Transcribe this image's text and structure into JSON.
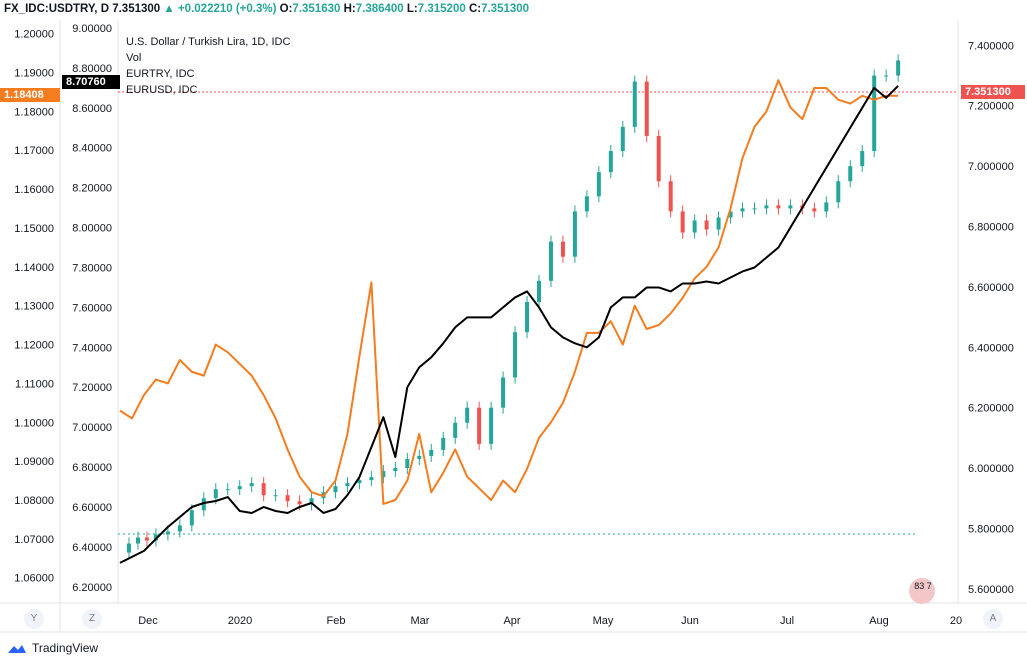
{
  "header": {
    "symbol": "FX_IDC:USDTRY, D",
    "last": "7.351300",
    "change": "+0.022210 (+0.3%)",
    "open_label": "O:",
    "open": "7.351630",
    "high_label": "H:",
    "high": "7.386400",
    "low_label": "L:",
    "low": "7.315200",
    "close_label": "C:",
    "close": "7.351300"
  },
  "legend": {
    "title": "U.S. Dollar / Turkish Lira, 1D, IDC",
    "vol": "Vol",
    "eurtry": "EURTRY, IDC",
    "eurusd": "EURUSD, IDC"
  },
  "badges": {
    "eurusd_last": "1.18408",
    "eurtry_last": "8.70760",
    "usdtry_last": "7.351300"
  },
  "scale_buttons": {
    "left1": "Y",
    "left2": "Z",
    "right": "A"
  },
  "footer": {
    "brand": "TradingView",
    "partial_label": "83 7"
  },
  "colors": {
    "usdtry_up": "#26a69a",
    "usdtry_down": "#ef5350",
    "eurusd": "#f57c1f",
    "eurtry": "#000000",
    "eurusd_badge": "#f57c1f",
    "usdtry_badge": "#ef5350",
    "eurtry_badge": "#000000"
  },
  "chart_data": {
    "type": "line",
    "title": "U.S. Dollar / Turkish Lira, 1D, IDC",
    "x_labels": [
      "Dec",
      "2020",
      "Feb",
      "Mar",
      "Apr",
      "May",
      "Jun",
      "Jul",
      "Aug",
      "20"
    ],
    "axes": {
      "eurusd": {
        "side": "left-outer",
        "ticks": [
          "1.20000",
          "1.19000",
          "1.18000",
          "1.17000",
          "1.16000",
          "1.15000",
          "1.14000",
          "1.13000",
          "1.12000",
          "1.11000",
          "1.10000",
          "1.09000",
          "1.08000",
          "1.07000",
          "1.06000"
        ],
        "range": [
          1.0535,
          1.2035
        ]
      },
      "eurtry": {
        "side": "left-inner",
        "ticks": [
          "9.00000",
          "8.80000",
          "8.60000",
          "8.40000",
          "8.20000",
          "8.00000",
          "7.80000",
          "7.60000",
          "7.40000",
          "7.20000",
          "7.00000",
          "6.80000",
          "6.60000",
          "6.40000",
          "6.20000"
        ],
        "range": [
          6.119,
          9.04
        ]
      },
      "usdtry": {
        "side": "right",
        "ticks": [
          "7.400000",
          "7.200000",
          "7.000000",
          "6.800000",
          "6.600000",
          "6.400000",
          "6.200000",
          "6.000000",
          "5.800000",
          "5.600000"
        ],
        "range": [
          5.553,
          7.484
        ]
      }
    },
    "series": [
      {
        "name": "USDTRY (candles, approx close)",
        "axis": "usdtry",
        "x": [
          0,
          3,
          6,
          9,
          12,
          16,
          20,
          24,
          28,
          32,
          36,
          40,
          44,
          48,
          52,
          56,
          60,
          64,
          68,
          72,
          76,
          80,
          84,
          88,
          92,
          96,
          100,
          104,
          108,
          112,
          116,
          120,
          124,
          128,
          132,
          136,
          140,
          144,
          148,
          152,
          156,
          160,
          164,
          168,
          172,
          176,
          180,
          184,
          188,
          192,
          196,
          200,
          204,
          208,
          212,
          216,
          220,
          224,
          228,
          232,
          236,
          240,
          244,
          248,
          252,
          256,
          260
        ],
        "values": [
          5.72,
          5.75,
          5.77,
          5.76,
          5.78,
          5.79,
          5.81,
          5.86,
          5.9,
          5.93,
          5.93,
          5.94,
          5.95,
          5.91,
          5.91,
          5.89,
          5.88,
          5.9,
          5.92,
          5.94,
          5.95,
          5.96,
          5.97,
          5.99,
          6.0,
          6.03,
          6.04,
          6.06,
          6.1,
          6.15,
          6.2,
          6.08,
          6.2,
          6.3,
          6.45,
          6.55,
          6.62,
          6.75,
          6.7,
          6.85,
          6.9,
          6.98,
          7.05,
          7.13,
          7.28,
          7.1,
          6.95,
          6.85,
          6.78,
          6.82,
          6.79,
          6.83,
          6.85,
          6.86,
          6.86,
          6.87,
          6.86,
          6.87,
          6.86,
          6.85,
          6.88,
          6.95,
          7.0,
          7.05,
          7.3,
          7.3,
          7.35
        ]
      },
      {
        "name": "EURUSD, IDC",
        "axis": "eurusd",
        "x": [
          0,
          4,
          8,
          12,
          16,
          20,
          24,
          28,
          32,
          36,
          40,
          44,
          48,
          52,
          56,
          60,
          64,
          68,
          72,
          76,
          80,
          84,
          88,
          92,
          96,
          100,
          104,
          108,
          112,
          116,
          120,
          124,
          128,
          132,
          136,
          140,
          144,
          148,
          152,
          156,
          160,
          164,
          168,
          172,
          176,
          180,
          184,
          188,
          192,
          196,
          200,
          204,
          208,
          212,
          216,
          220,
          224,
          228,
          232,
          236,
          240,
          244,
          248,
          252,
          256,
          260
        ],
        "values": [
          1.103,
          1.101,
          1.107,
          1.111,
          1.11,
          1.116,
          1.113,
          1.112,
          1.12,
          1.118,
          1.115,
          1.112,
          1.107,
          1.101,
          1.093,
          1.086,
          1.082,
          1.081,
          1.085,
          1.097,
          1.117,
          1.136,
          1.079,
          1.08,
          1.085,
          1.097,
          1.082,
          1.087,
          1.093,
          1.086,
          1.083,
          1.08,
          1.085,
          1.082,
          1.088,
          1.096,
          1.1,
          1.105,
          1.113,
          1.123,
          1.123,
          1.126,
          1.12,
          1.13,
          1.124,
          1.125,
          1.128,
          1.132,
          1.137,
          1.14,
          1.145,
          1.155,
          1.168,
          1.176,
          1.18,
          1.188,
          1.181,
          1.178,
          1.186,
          1.186,
          1.183,
          1.182,
          1.184,
          1.183,
          1.184,
          1.184
        ]
      },
      {
        "name": "EURTRY, IDC",
        "axis": "eurtry",
        "x": [
          0,
          4,
          8,
          12,
          16,
          20,
          24,
          28,
          32,
          36,
          40,
          44,
          48,
          52,
          56,
          60,
          64,
          68,
          72,
          76,
          80,
          84,
          88,
          92,
          96,
          100,
          104,
          108,
          112,
          116,
          120,
          124,
          128,
          132,
          136,
          140,
          144,
          148,
          152,
          156,
          160,
          164,
          168,
          172,
          176,
          180,
          184,
          188,
          192,
          196,
          200,
          204,
          208,
          212,
          216,
          220,
          224,
          228,
          232,
          236,
          240,
          244,
          248,
          252,
          256,
          260
        ],
        "values": [
          6.32,
          6.35,
          6.38,
          6.44,
          6.5,
          6.55,
          6.6,
          6.62,
          6.63,
          6.65,
          6.58,
          6.57,
          6.6,
          6.58,
          6.57,
          6.6,
          6.62,
          6.57,
          6.59,
          6.66,
          6.75,
          6.9,
          7.05,
          6.85,
          7.2,
          7.3,
          7.35,
          7.42,
          7.5,
          7.55,
          7.55,
          7.55,
          7.6,
          7.65,
          7.68,
          7.6,
          7.5,
          7.45,
          7.42,
          7.4,
          7.45,
          7.6,
          7.65,
          7.65,
          7.7,
          7.7,
          7.68,
          7.72,
          7.72,
          7.73,
          7.72,
          7.75,
          7.78,
          7.8,
          7.85,
          7.9,
          8.0,
          8.1,
          8.2,
          8.3,
          8.4,
          8.5,
          8.6,
          8.7,
          8.65,
          8.71
        ]
      }
    ]
  }
}
